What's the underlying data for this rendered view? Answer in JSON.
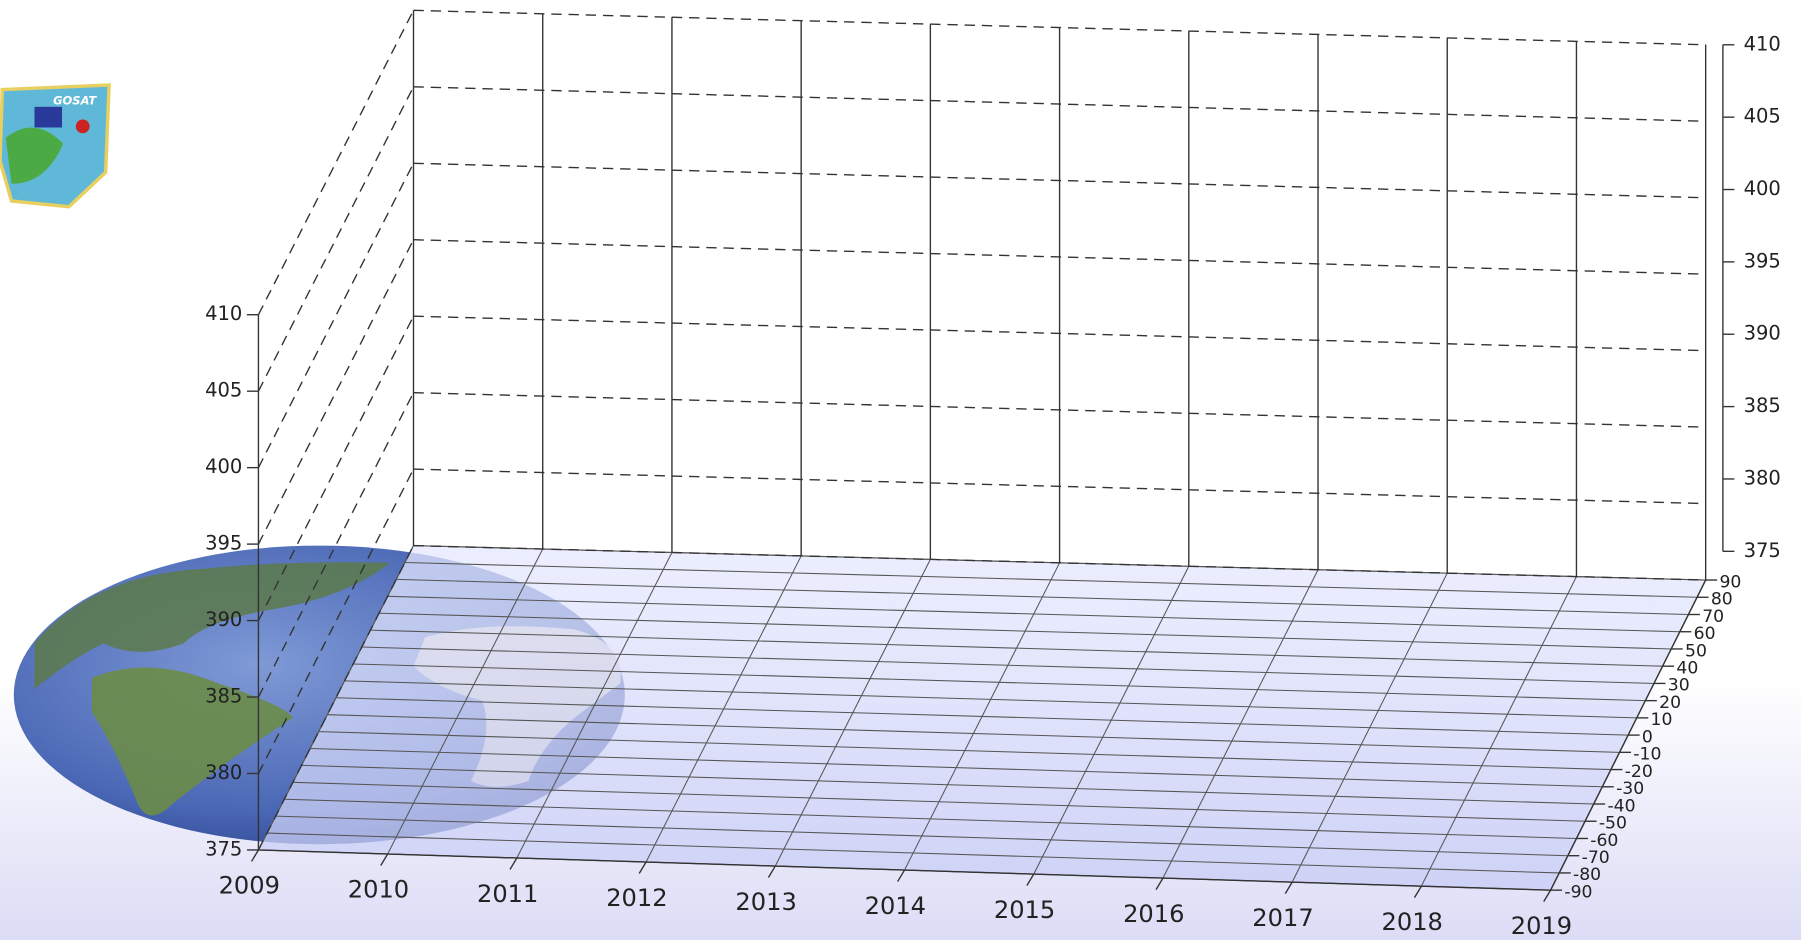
{
  "logo": {
    "text": "GOSAT"
  },
  "chart_data": {
    "type": "3d-axes",
    "xlim": [
      2009,
      2019
    ],
    "xticks": [
      2009,
      2010,
      2011,
      2012,
      2013,
      2014,
      2015,
      2016,
      2017,
      2018,
      2019
    ],
    "ylim": [
      375,
      410
    ],
    "yticks": [
      375,
      380,
      385,
      390,
      395,
      400,
      405,
      410
    ],
    "zlim": [
      -90,
      90
    ],
    "zticks": [
      -90,
      -80,
      -70,
      -60,
      -50,
      -40,
      -30,
      -20,
      -10,
      0,
      10,
      20,
      30,
      40,
      50,
      60,
      70,
      80,
      90
    ],
    "grid": true
  }
}
